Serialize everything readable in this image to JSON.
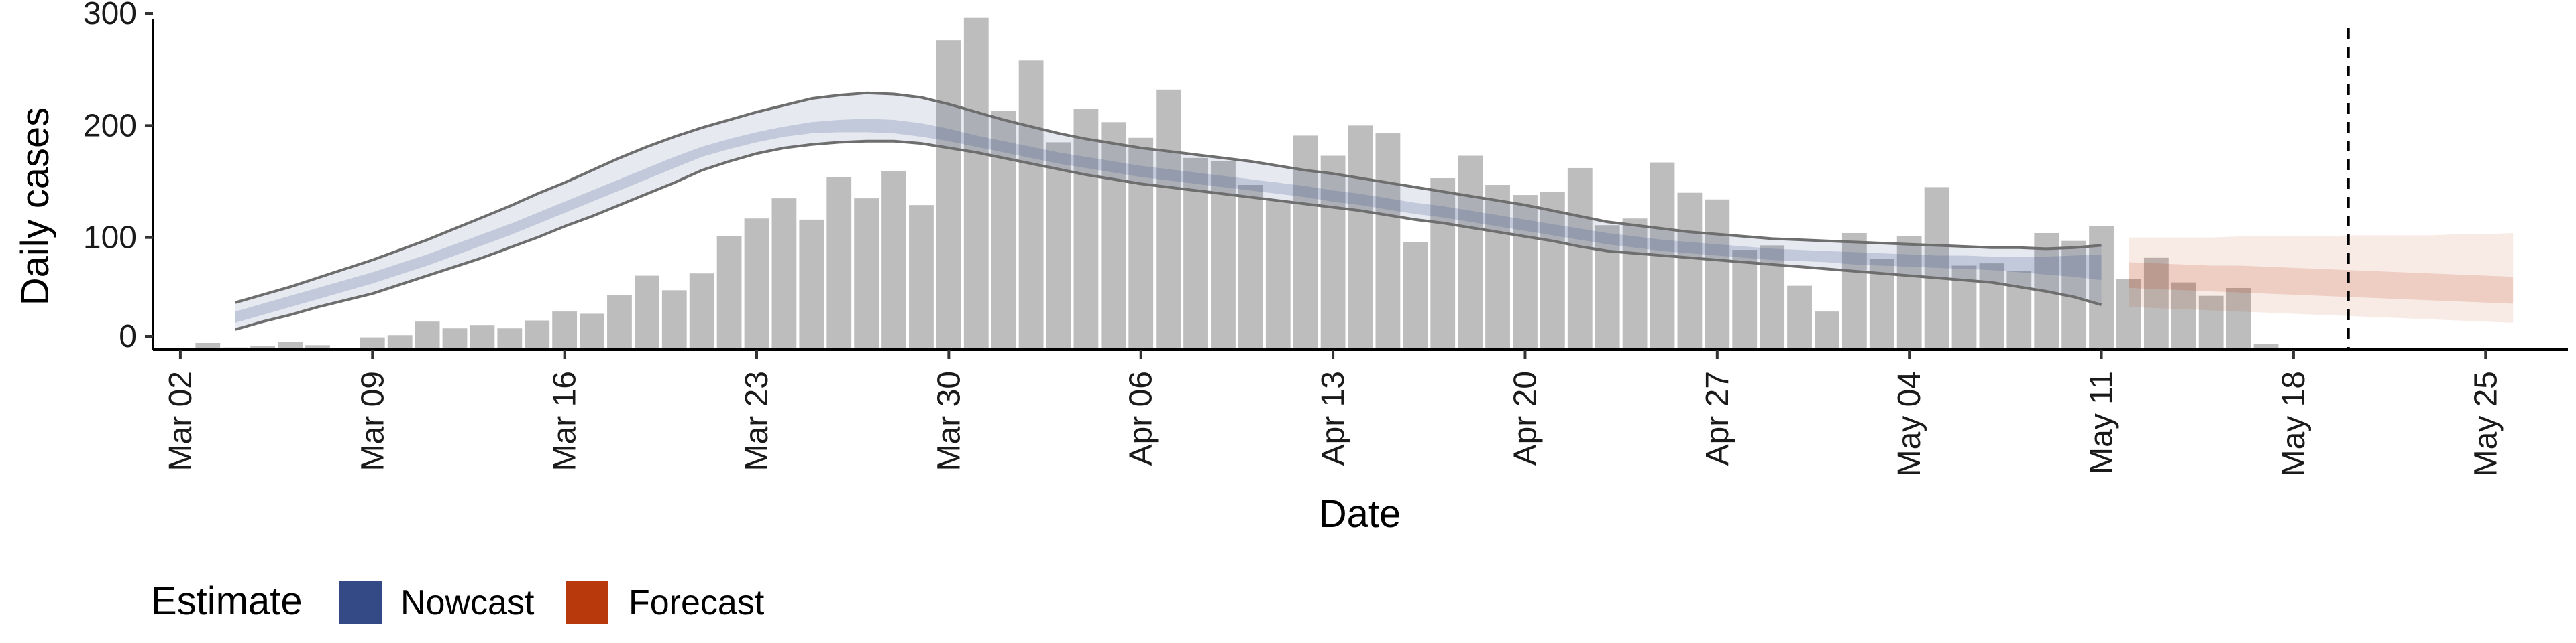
{
  "chart_data": {
    "type": "bar",
    "xlabel": "Date",
    "ylabel": "Daily cases",
    "ylim": [
      0,
      300
    ],
    "yticks": [
      0,
      100,
      200,
      300
    ],
    "xlim": [
      "2020-03-01",
      "2020-05-28"
    ],
    "xticks": [
      {
        "date": "2020-03-02",
        "label": "Mar 02"
      },
      {
        "date": "2020-03-09",
        "label": "Mar 09"
      },
      {
        "date": "2020-03-16",
        "label": "Mar 16"
      },
      {
        "date": "2020-03-23",
        "label": "Mar 23"
      },
      {
        "date": "2020-03-30",
        "label": "Mar 30"
      },
      {
        "date": "2020-04-06",
        "label": "Apr 06"
      },
      {
        "date": "2020-04-13",
        "label": "Apr 13"
      },
      {
        "date": "2020-04-20",
        "label": "Apr 20"
      },
      {
        "date": "2020-04-27",
        "label": "Apr 27"
      },
      {
        "date": "2020-05-04",
        "label": "May 04"
      },
      {
        "date": "2020-05-11",
        "label": "May 11"
      },
      {
        "date": "2020-05-18",
        "label": "May 18"
      },
      {
        "date": "2020-05-25",
        "label": "May 25"
      }
    ],
    "reference_line_date": "2020-05-20",
    "legend": {
      "title": "Estimate",
      "position": "bottom-left",
      "items": [
        {
          "label": "Nowcast",
          "color": "#344a86"
        },
        {
          "label": "Forecast",
          "color": "#b83a0c"
        }
      ]
    },
    "colors": {
      "bars": "#bdbdbd",
      "nowcast": "#344a86",
      "forecast": "#b83a0c",
      "outline": "#6e6e6e"
    },
    "grid": false,
    "bars": {
      "start_date": "2020-03-03",
      "values": [
        6,
        2,
        3,
        7,
        4,
        1,
        11,
        13,
        25,
        19,
        22,
        19,
        26,
        34,
        32,
        49,
        66,
        53,
        68,
        101,
        117,
        135,
        116,
        154,
        135,
        159,
        129,
        276,
        296,
        213,
        258,
        185,
        215,
        203,
        189,
        232,
        171,
        168,
        147,
        133,
        191,
        173,
        200,
        193,
        96,
        153,
        173,
        147,
        138,
        141,
        162,
        111,
        117,
        167,
        140,
        134,
        89,
        93,
        57,
        34,
        104,
        81,
        101,
        145,
        75,
        77,
        70,
        104,
        97,
        110,
        63,
        82,
        60,
        48,
        55,
        5
      ]
    },
    "nowcast": {
      "start_date": "2020-03-04",
      "lower90": [
        18,
        25,
        31,
        38,
        44,
        50,
        58,
        66,
        74,
        82,
        91,
        100,
        110,
        119,
        129,
        139,
        149,
        160,
        168,
        175,
        180,
        183,
        185,
        186,
        186,
        184,
        180,
        176,
        171,
        166,
        161,
        156,
        152,
        148,
        145,
        142,
        139,
        136,
        133,
        130,
        127,
        124,
        120,
        116,
        113,
        109,
        105,
        101,
        97,
        92,
        88,
        86,
        84,
        82,
        80,
        78,
        76,
        74,
        72,
        70,
        68,
        66,
        64,
        62,
        60,
        56,
        52,
        47,
        40
      ],
      "upper90": [
        42,
        49,
        56,
        64,
        72,
        80,
        89,
        98,
        108,
        118,
        128,
        139,
        149,
        160,
        171,
        181,
        190,
        198,
        205,
        212,
        218,
        224,
        227,
        229,
        228,
        225,
        219,
        212,
        205,
        199,
        193,
        188,
        184,
        180,
        177,
        174,
        171,
        168,
        164,
        160,
        157,
        153,
        149,
        145,
        141,
        137,
        133,
        129,
        124,
        119,
        114,
        111,
        108,
        105,
        103,
        101,
        99,
        98,
        97,
        96,
        95,
        94,
        93,
        92,
        91,
        91,
        90,
        91,
        93
      ],
      "lower50": [
        24,
        31,
        38,
        45,
        52,
        59,
        67,
        75,
        84,
        93,
        102,
        112,
        122,
        132,
        142,
        152,
        162,
        172,
        179,
        185,
        190,
        193,
        194,
        194,
        193,
        190,
        186,
        181,
        176,
        171,
        166,
        162,
        158,
        154,
        151,
        148,
        145,
        142,
        139,
        136,
        132,
        129,
        125,
        121,
        118,
        114,
        110,
        106,
        102,
        98,
        94,
        91,
        88,
        86,
        84,
        82,
        80,
        79,
        78,
        76,
        75,
        74,
        73,
        72,
        71,
        69,
        67,
        65,
        62
      ],
      "upper50": [
        34,
        41,
        48,
        55,
        62,
        69,
        77,
        85,
        94,
        103,
        112,
        122,
        132,
        142,
        152,
        162,
        172,
        181,
        188,
        194,
        199,
        203,
        205,
        206,
        205,
        202,
        197,
        191,
        186,
        181,
        176,
        172,
        168,
        164,
        161,
        158,
        155,
        152,
        149,
        146,
        142,
        139,
        135,
        131,
        128,
        124,
        120,
        116,
        112,
        108,
        104,
        101,
        98,
        96,
        94,
        92,
        90,
        89,
        88,
        87,
        86,
        85,
        84,
        84,
        83,
        83,
        83,
        84,
        85
      ]
    },
    "forecast": {
      "start_date": "2020-05-12",
      "lower90": [
        38,
        37,
        36,
        35,
        34,
        33,
        32,
        31,
        30,
        29,
        28,
        27,
        26,
        25,
        24
      ],
      "upper90": [
        100,
        100,
        100,
        100,
        101,
        101,
        101,
        101,
        102,
        102,
        102,
        102,
        103,
        103,
        104
      ],
      "lower50": [
        55,
        54,
        53,
        52,
        51,
        50,
        49,
        48,
        47,
        46,
        45,
        44,
        43,
        42,
        41
      ],
      "upper50": [
        78,
        77,
        76,
        75,
        75,
        74,
        73,
        72,
        71,
        70,
        69,
        68,
        67,
        66,
        65
      ]
    }
  }
}
